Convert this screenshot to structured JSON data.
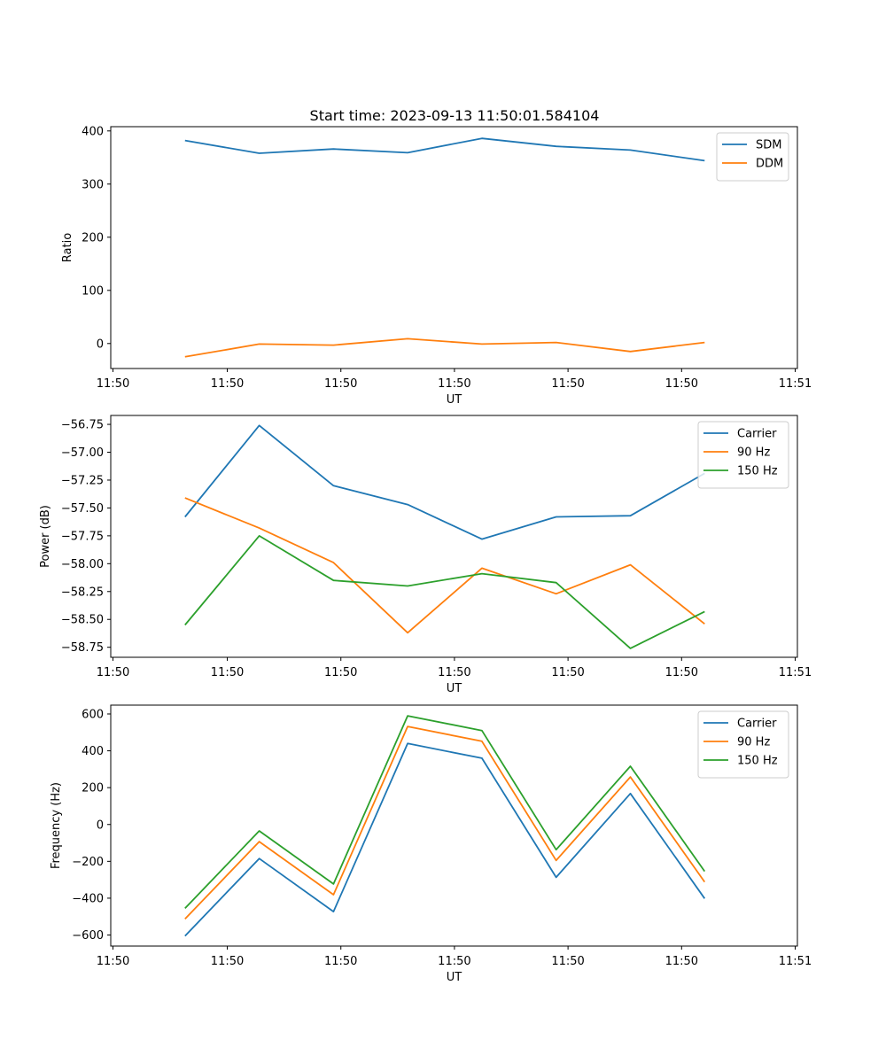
{
  "chart_data": [
    {
      "type": "line",
      "title": "Start time: 2023-09-13 11:50:01.584104",
      "xlabel": "UT",
      "ylabel": "Ratio",
      "xlim": [
        0,
        9.25
      ],
      "ylim": [
        -47,
        408
      ],
      "x": [
        1,
        2,
        3,
        4,
        5,
        6,
        7,
        8
      ],
      "xticks": [
        0.03,
        1.57,
        3.1,
        4.63,
        6.16,
        7.69,
        9.22
      ],
      "xtick_labels": [
        "11:50",
        "11:50",
        "11:50",
        "11:50",
        "11:50",
        "11:50",
        "11:51"
      ],
      "yticks": [
        0,
        100,
        200,
        300,
        400
      ],
      "ytick_labels": [
        "0",
        "100",
        "200",
        "300",
        "400"
      ],
      "legend_position": "top-right",
      "series": [
        {
          "name": "SDM",
          "color": "#1f77b4",
          "values": [
            382,
            358,
            366,
            359,
            386,
            371,
            364,
            344
          ]
        },
        {
          "name": "DDM",
          "color": "#ff7f0e",
          "values": [
            -25,
            -1,
            -3,
            9,
            -1,
            2,
            -15,
            2
          ]
        }
      ]
    },
    {
      "type": "line",
      "title": "",
      "xlabel": "UT",
      "ylabel": "Power (dB)",
      "xlim": [
        0,
        9.25
      ],
      "ylim": [
        -58.84,
        -56.67
      ],
      "x": [
        1,
        2,
        3,
        4,
        5,
        6,
        7,
        8
      ],
      "xticks": [
        0.03,
        1.57,
        3.1,
        4.63,
        6.16,
        7.69,
        9.22
      ],
      "xtick_labels": [
        "11:50",
        "11:50",
        "11:50",
        "11:50",
        "11:50",
        "11:50",
        "11:51"
      ],
      "yticks": [
        -56.75,
        -57.0,
        -57.25,
        -57.5,
        -57.75,
        -58.0,
        -58.25,
        -58.5,
        -58.75
      ],
      "ytick_labels": [
        "−56.75",
        "−57.00",
        "−57.25",
        "−57.50",
        "−57.75",
        "−58.00",
        "−58.25",
        "−58.50",
        "−58.75"
      ],
      "legend_position": "top-right",
      "series": [
        {
          "name": "Carrier",
          "color": "#1f77b4",
          "values": [
            -57.58,
            -56.76,
            -57.3,
            -57.47,
            -57.78,
            -57.58,
            -57.57,
            -57.19
          ]
        },
        {
          "name": "90 Hz",
          "color": "#ff7f0e",
          "values": [
            -57.41,
            -57.68,
            -57.99,
            -58.62,
            -58.04,
            -58.27,
            -58.01,
            -58.54
          ]
        },
        {
          "name": "150 Hz",
          "color": "#2ca02c",
          "values": [
            -58.55,
            -57.75,
            -58.15,
            -58.2,
            -58.09,
            -58.17,
            -58.76,
            -58.43
          ]
        }
      ]
    },
    {
      "type": "line",
      "title": "",
      "xlabel": "UT",
      "ylabel": "Frequency (Hz)",
      "xlim": [
        0,
        9.25
      ],
      "ylim": [
        -660,
        648
      ],
      "x": [
        1,
        2,
        3,
        4,
        5,
        6,
        7,
        8
      ],
      "xticks": [
        0.03,
        1.57,
        3.1,
        4.63,
        6.16,
        7.69,
        9.22
      ],
      "xtick_labels": [
        "11:50",
        "11:50",
        "11:50",
        "11:50",
        "11:50",
        "11:50",
        "11:51"
      ],
      "yticks": [
        -600,
        -400,
        -200,
        0,
        200,
        400,
        600
      ],
      "ytick_labels": [
        "−600",
        "−400",
        "−200",
        "0",
        "200",
        "400",
        "600"
      ],
      "legend_position": "top-right",
      "series": [
        {
          "name": "Carrier",
          "color": "#1f77b4",
          "values": [
            -605,
            -185,
            -473,
            440,
            360,
            -287,
            168,
            -402
          ]
        },
        {
          "name": "90 Hz",
          "color": "#ff7f0e",
          "values": [
            -513,
            -93,
            -381,
            532,
            452,
            -195,
            258,
            -312
          ]
        },
        {
          "name": "150 Hz",
          "color": "#2ca02c",
          "values": [
            -455,
            -35,
            -323,
            590,
            510,
            -137,
            316,
            -254
          ]
        }
      ]
    }
  ]
}
